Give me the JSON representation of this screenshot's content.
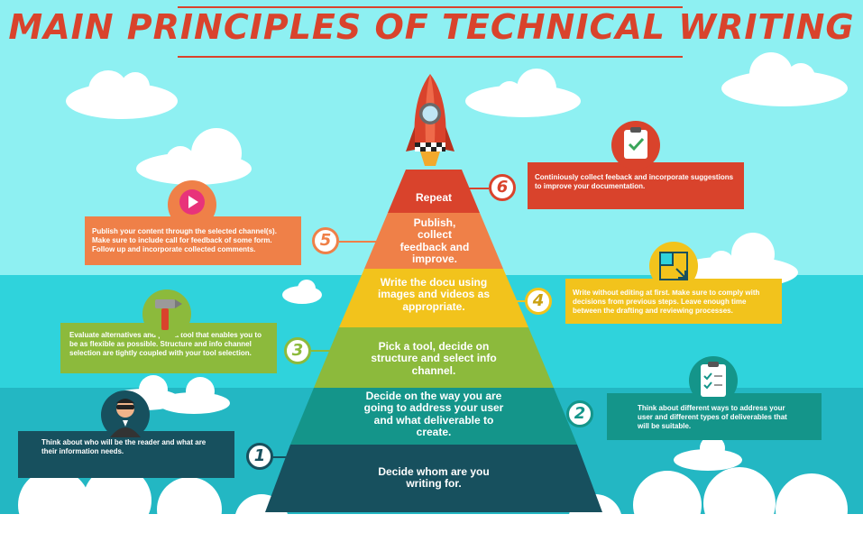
{
  "title": "Main Principles of Technical Writing",
  "colors": {
    "title_red": "#d9432c",
    "sky": "#8ef0f2",
    "sea_light": "#2fd3dc",
    "sea_dark": "#23b7c3",
    "tier1": "#17505e",
    "tier2": "#14958a",
    "tier3": "#8cba3c",
    "tier4": "#f2c31c",
    "tier5": "#ef8048",
    "tier6": "#d9432c"
  },
  "steps": [
    {
      "number": "1",
      "tier_label": "Decide whom are you writing for.",
      "description": "Think about who will be the reader and what are their information needs.",
      "icon": "reader-avatar-icon"
    },
    {
      "number": "2",
      "tier_label": "Decide on the way you are going to address your user and what deliverable to create.",
      "description": "Think about different ways to address your user and different types of deliverables that will be suitable.",
      "icon": "checklist-clipboard-icon"
    },
    {
      "number": "3",
      "tier_label": "Pick a tool, decide on structure and select info channel.",
      "description": "Evaluate alternatives and pick a tool that enables you to be as flexible as possible. Structure and info channel selection are tightly coupled with your tool selection.",
      "icon": "hammer-icon"
    },
    {
      "number": "4",
      "tier_label": "Write the docu using images and videos as appropriate.",
      "description": "Write without editing at first. Make sure to comply with decisions from previous steps. Leave enough time between the drafting and reviewing processes.",
      "icon": "crop-frame-icon"
    },
    {
      "number": "5",
      "tier_label": "Publish, collect feedback and improve.",
      "description": "Publish your content through the selected channel(s). Make sure to include call for feedback of some form. Follow up and incorporate collected comments.",
      "icon": "play-button-icon"
    },
    {
      "number": "6",
      "tier_label": "Repeat",
      "description": "Continiously collect feeback and incorporate suggestions to improve your documentation.",
      "icon": "approved-clipboard-icon"
    }
  ]
}
